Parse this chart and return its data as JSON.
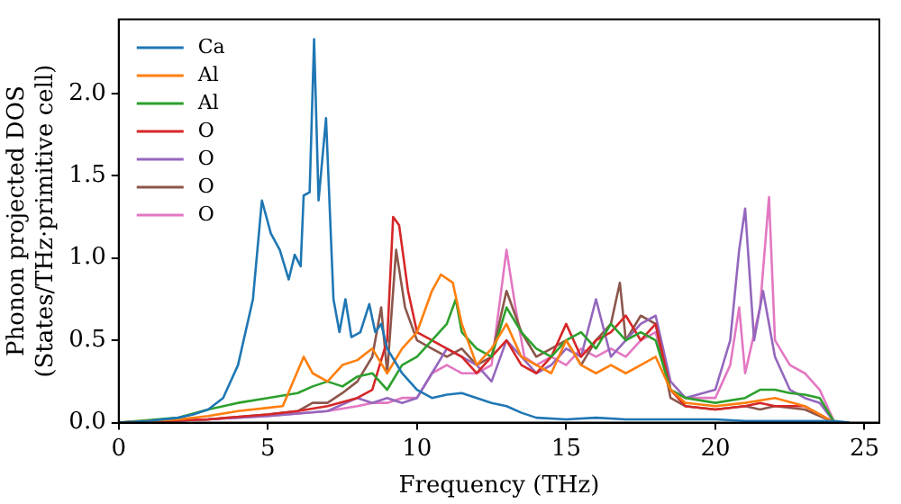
{
  "chart_data": {
    "type": "line",
    "xlabel": "Frequency (THz)",
    "ylabel": "Phonon projected DOS\n(States/THz·primitive cell)",
    "xlim": [
      0,
      25.5
    ],
    "ylim": [
      0,
      2.45
    ],
    "xticks": [
      0,
      5,
      10,
      15,
      20,
      25
    ],
    "yticks": [
      {
        "value": 0,
        "label": "0.0"
      },
      {
        "value": 0.5,
        "label": "0.5"
      },
      {
        "value": 1,
        "label": "1.0"
      },
      {
        "value": 1.5,
        "label": "1.5"
      },
      {
        "value": 2,
        "label": "2.0"
      }
    ],
    "grid": false,
    "legend": "top left",
    "marker": "none",
    "line_style": "solid",
    "series": [
      {
        "name": "Ca",
        "color": "#1f77b4",
        "x": [
          0,
          1,
          2,
          2.5,
          3,
          3.5,
          4,
          4.5,
          4.8,
          5.1,
          5.4,
          5.7,
          5.9,
          6.1,
          6.2,
          6.4,
          6.55,
          6.7,
          6.95,
          7.2,
          7.4,
          7.6,
          7.8,
          8.1,
          8.4,
          8.6,
          8.8,
          9.0,
          9.5,
          10,
          10.5,
          11,
          11.5,
          12,
          12.5,
          13,
          13.5,
          14,
          15,
          16,
          17,
          18,
          19,
          20,
          21,
          22,
          23,
          24,
          24.5
        ],
        "values": [
          0,
          0.01,
          0.03,
          0.05,
          0.08,
          0.15,
          0.35,
          0.75,
          1.35,
          1.15,
          1.05,
          0.87,
          1.02,
          0.95,
          1.38,
          1.4,
          2.33,
          1.35,
          1.85,
          0.75,
          0.55,
          0.75,
          0.52,
          0.55,
          0.72,
          0.55,
          0.6,
          0.45,
          0.3,
          0.2,
          0.15,
          0.17,
          0.18,
          0.15,
          0.12,
          0.1,
          0.06,
          0.03,
          0.02,
          0.03,
          0.02,
          0.02,
          0.02,
          0.02,
          0.01,
          0.01,
          0.01,
          0.01,
          0
        ]
      },
      {
        "name": "Al",
        "color": "#ff7f0e",
        "x": [
          0,
          2,
          3,
          4,
          5,
          5.5,
          6.2,
          6.5,
          7,
          7.5,
          8,
          8.5,
          9,
          9.5,
          10,
          10.5,
          10.8,
          11.2,
          11.5,
          12,
          12.5,
          13,
          13.5,
          14,
          14.5,
          15,
          15.5,
          16,
          16.5,
          17,
          17.5,
          18,
          18.5,
          19,
          20,
          21,
          22,
          23,
          24
        ],
        "values": [
          0,
          0.02,
          0.04,
          0.07,
          0.09,
          0.1,
          0.4,
          0.3,
          0.25,
          0.35,
          0.38,
          0.45,
          0.3,
          0.45,
          0.55,
          0.8,
          0.9,
          0.85,
          0.6,
          0.35,
          0.45,
          0.6,
          0.4,
          0.35,
          0.3,
          0.5,
          0.35,
          0.3,
          0.35,
          0.3,
          0.35,
          0.4,
          0.2,
          0.12,
          0.1,
          0.12,
          0.15,
          0.1,
          0
        ]
      },
      {
        "name": "Al",
        "color": "#2ca02c",
        "x": [
          0,
          2,
          3,
          4,
          5,
          6,
          6.5,
          7,
          7.5,
          8,
          8.5,
          9,
          9.5,
          10,
          10.5,
          11,
          11.3,
          11.5,
          12,
          12.5,
          13,
          13.5,
          14,
          14.5,
          15,
          15.5,
          16,
          16.5,
          17,
          17.5,
          18,
          18.5,
          19,
          20,
          21,
          21.5,
          22,
          22.5,
          23,
          23.5,
          24
        ],
        "values": [
          0,
          0.03,
          0.08,
          0.12,
          0.15,
          0.18,
          0.22,
          0.25,
          0.22,
          0.28,
          0.3,
          0.2,
          0.35,
          0.4,
          0.5,
          0.6,
          0.75,
          0.55,
          0.45,
          0.4,
          0.7,
          0.55,
          0.45,
          0.4,
          0.5,
          0.55,
          0.45,
          0.6,
          0.5,
          0.55,
          0.5,
          0.2,
          0.15,
          0.12,
          0.15,
          0.2,
          0.2,
          0.18,
          0.17,
          0.15,
          0
        ]
      },
      {
        "name": "O",
        "color": "#d62728",
        "x": [
          0,
          3,
          5,
          6,
          7,
          8,
          8.5,
          9,
          9.2,
          9.4,
          9.7,
          10,
          10.5,
          11,
          11.5,
          12,
          12.5,
          13,
          13.5,
          14,
          14.5,
          15,
          15.5,
          16,
          16.5,
          17,
          17.5,
          18,
          18.5,
          19,
          20,
          21,
          21.5,
          22,
          23,
          24
        ],
        "values": [
          0,
          0.02,
          0.05,
          0.07,
          0.1,
          0.15,
          0.2,
          0.5,
          1.25,
          1.2,
          0.8,
          0.55,
          0.5,
          0.45,
          0.4,
          0.3,
          0.4,
          0.5,
          0.35,
          0.3,
          0.4,
          0.6,
          0.4,
          0.5,
          0.55,
          0.65,
          0.5,
          0.6,
          0.2,
          0.1,
          0.08,
          0.1,
          0.12,
          0.1,
          0.1,
          0
        ]
      },
      {
        "name": "O",
        "color": "#9467bd",
        "x": [
          0,
          3,
          5,
          7,
          8,
          8.5,
          9,
          9.5,
          10,
          10.5,
          11,
          11.5,
          12,
          12.5,
          13,
          13.5,
          14,
          14.5,
          15,
          15.5,
          16,
          16.5,
          17,
          17.5,
          18,
          18.5,
          19,
          20,
          20.5,
          20.8,
          21,
          21.3,
          21.6,
          22,
          22.5,
          23,
          23.5,
          24
        ],
        "values": [
          0,
          0.02,
          0.04,
          0.07,
          0.15,
          0.12,
          0.15,
          0.12,
          0.15,
          0.3,
          0.45,
          0.4,
          0.35,
          0.25,
          0.5,
          0.4,
          0.3,
          0.35,
          0.45,
          0.4,
          0.75,
          0.4,
          0.5,
          0.6,
          0.65,
          0.25,
          0.15,
          0.2,
          0.5,
          1.05,
          1.3,
          0.5,
          0.8,
          0.4,
          0.2,
          0.15,
          0.12,
          0
        ]
      },
      {
        "name": "O",
        "color": "#8c564b",
        "x": [
          0,
          3,
          5,
          6,
          6.5,
          7,
          7.5,
          8,
          8.5,
          8.8,
          9,
          9.3,
          9.6,
          10,
          10.5,
          11,
          11.5,
          12,
          12.5,
          13,
          13.5,
          14,
          14.5,
          15,
          15.5,
          16,
          16.5,
          16.8,
          17,
          17.5,
          18,
          18.5,
          19,
          20,
          21,
          21.5,
          22,
          23,
          24
        ],
        "values": [
          0,
          0.02,
          0.05,
          0.07,
          0.12,
          0.12,
          0.18,
          0.25,
          0.4,
          0.7,
          0.3,
          1.05,
          0.7,
          0.5,
          0.45,
          0.4,
          0.45,
          0.35,
          0.4,
          0.8,
          0.55,
          0.4,
          0.45,
          0.5,
          0.35,
          0.5,
          0.6,
          0.85,
          0.5,
          0.65,
          0.6,
          0.15,
          0.1,
          0.08,
          0.1,
          0.08,
          0.1,
          0.08,
          0
        ]
      },
      {
        "name": "O",
        "color": "#e377c2",
        "x": [
          0,
          3,
          5,
          7,
          8,
          8.5,
          9,
          9.5,
          10,
          10.5,
          11,
          11.5,
          12,
          12.5,
          13,
          13.3,
          13.6,
          14,
          14.5,
          15,
          15.5,
          16,
          16.5,
          17,
          17.5,
          18,
          18.5,
          19,
          20,
          20.5,
          20.8,
          21,
          21.5,
          21.8,
          22,
          22.5,
          23,
          23.5,
          24
        ],
        "values": [
          0,
          0.02,
          0.04,
          0.07,
          0.1,
          0.12,
          0.12,
          0.15,
          0.15,
          0.3,
          0.35,
          0.3,
          0.3,
          0.35,
          1.05,
          0.7,
          0.4,
          0.35,
          0.4,
          0.35,
          0.45,
          0.4,
          0.45,
          0.4,
          0.5,
          0.55,
          0.2,
          0.15,
          0.15,
          0.35,
          0.7,
          0.3,
          0.7,
          1.37,
          0.5,
          0.35,
          0.3,
          0.2,
          0
        ]
      }
    ]
  }
}
